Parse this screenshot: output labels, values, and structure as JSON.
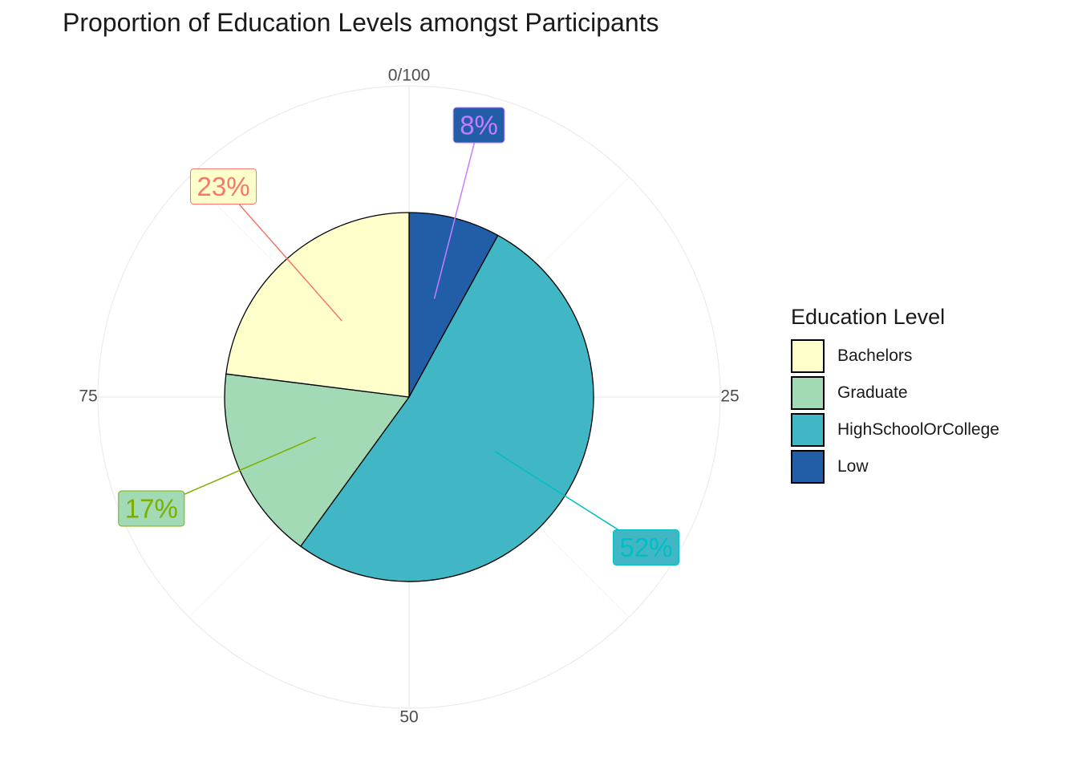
{
  "chart_data": {
    "type": "pie",
    "title": "Proportion of Education Levels amongst Participants",
    "legend_title": "Education Level",
    "legend_position": "right",
    "theta_ticks": [
      {
        "value": 0,
        "label": "0/100"
      },
      {
        "value": 25,
        "label": "25"
      },
      {
        "value": 50,
        "label": "50"
      },
      {
        "value": 75,
        "label": "75"
      }
    ],
    "slices": [
      {
        "name": "Low",
        "value": 8,
        "label": "8%",
        "color": "#225ea8",
        "label_color": "#c77cff"
      },
      {
        "name": "HighSchoolOrCollege",
        "value": 52,
        "label": "52%",
        "color": "#41b6c4",
        "label_color": "#00bfc4"
      },
      {
        "name": "Graduate",
        "value": 17,
        "label": "17%",
        "color": "#a1dab4",
        "label_color": "#7cae00"
      },
      {
        "name": "Bachelors",
        "value": 23,
        "label": "23%",
        "color": "#ffffcc",
        "label_color": "#f8766d"
      }
    ],
    "legend_order": [
      "Bachelors",
      "Graduate",
      "HighSchoolOrCollege",
      "Low"
    ],
    "grid": true
  }
}
